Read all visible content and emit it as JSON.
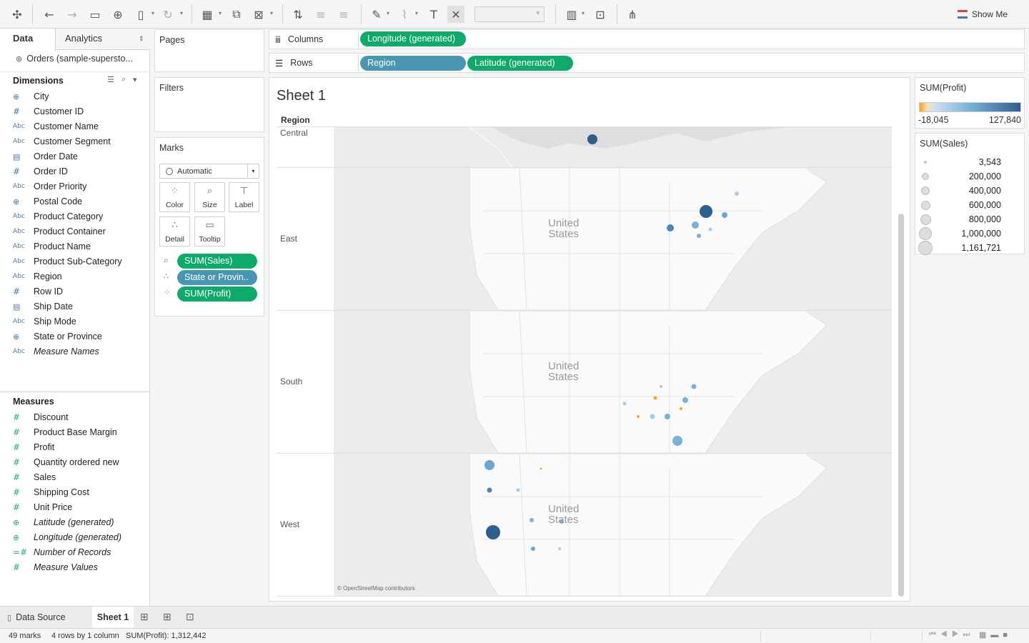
{
  "toolbar": {
    "show_me": "Show Me"
  },
  "data_pane": {
    "tab_data": "Data",
    "tab_analytics": "Analytics",
    "datasource": "Orders (sample-supersto...",
    "dimensions_title": "Dimensions",
    "dimensions": [
      {
        "icon": "globe",
        "label": "City"
      },
      {
        "icon": "#",
        "label": "Customer ID"
      },
      {
        "icon": "Abc",
        "label": "Customer Name"
      },
      {
        "icon": "Abc",
        "label": "Customer Segment"
      },
      {
        "icon": "cal",
        "label": "Order Date"
      },
      {
        "icon": "#",
        "label": "Order ID"
      },
      {
        "icon": "Abc",
        "label": "Order Priority"
      },
      {
        "icon": "globe",
        "label": "Postal Code"
      },
      {
        "icon": "Abc",
        "label": "Product Category"
      },
      {
        "icon": "Abc",
        "label": "Product Container"
      },
      {
        "icon": "Abc",
        "label": "Product Name"
      },
      {
        "icon": "Abc",
        "label": "Product Sub-Category"
      },
      {
        "icon": "Abc",
        "label": "Region"
      },
      {
        "icon": "#",
        "label": "Row ID"
      },
      {
        "icon": "cal",
        "label": "Ship Date"
      },
      {
        "icon": "Abc",
        "label": "Ship Mode"
      },
      {
        "icon": "globe",
        "label": "State or Province"
      },
      {
        "icon": "Abc",
        "label": "Measure Names",
        "italic": true
      }
    ],
    "measures_title": "Measures",
    "measures": [
      {
        "icon": "#",
        "label": "Discount"
      },
      {
        "icon": "#",
        "label": "Product Base Margin"
      },
      {
        "icon": "#",
        "label": "Profit"
      },
      {
        "icon": "#",
        "label": "Quantity ordered new"
      },
      {
        "icon": "#",
        "label": "Sales"
      },
      {
        "icon": "#",
        "label": "Shipping Cost"
      },
      {
        "icon": "#",
        "label": "Unit Price"
      },
      {
        "icon": "globe",
        "label": "Latitude (generated)",
        "italic": true
      },
      {
        "icon": "globe",
        "label": "Longitude (generated)",
        "italic": true
      },
      {
        "icon": "=#",
        "label": "Number of Records",
        "italic": true
      },
      {
        "icon": "#",
        "label": "Measure Values",
        "italic": true
      }
    ]
  },
  "cards": {
    "pages": "Pages",
    "filters": "Filters",
    "marks": "Marks",
    "mark_type": "Automatic",
    "buttons": {
      "color": "Color",
      "size": "Size",
      "label": "Label",
      "detail": "Detail",
      "tooltip": "Tooltip"
    },
    "mark_pills": [
      "SUM(Sales)",
      "State or Provin..",
      "SUM(Profit)"
    ]
  },
  "shelves": {
    "columns_label": "Columns",
    "rows_label": "Rows",
    "columns_pills": [
      "Longitude (generated)"
    ],
    "rows_pills": [
      "Region",
      "Latitude (generated)"
    ]
  },
  "sheet": {
    "title": "Sheet 1",
    "region_header": "Region",
    "regions": [
      "Central",
      "East",
      "South",
      "West"
    ],
    "map_label": "United States",
    "attribution": "© OpenStreetMap contributors"
  },
  "legend_profit": {
    "title": "SUM(Profit)",
    "min": "-18,045",
    "max": "127,840",
    "color_low": "#f5a623",
    "color_mid": "#a9cbe6",
    "color_high": "#2c5f8f"
  },
  "legend_sales": {
    "title": "SUM(Sales)",
    "items": [
      "3,543",
      "200,000",
      "400,000",
      "600,000",
      "800,000",
      "1,000,000",
      "1,161,721"
    ]
  },
  "tabs": {
    "data_source": "Data Source",
    "sheet1": "Sheet 1"
  },
  "status": {
    "marks": "49 marks",
    "rows_cols": "4 rows by 1 column",
    "sum_profit": "SUM(Profit): 1,312,442"
  }
}
